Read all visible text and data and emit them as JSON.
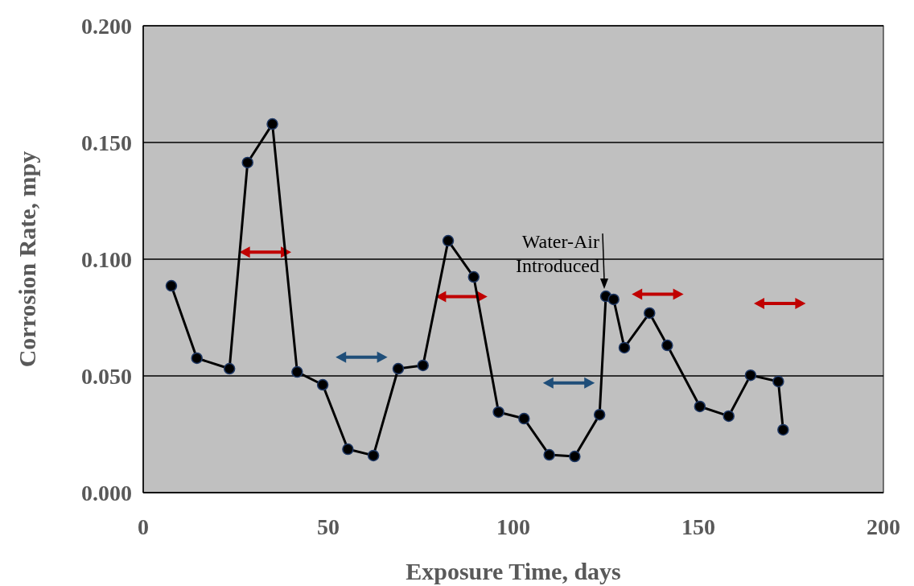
{
  "chart_data": {
    "type": "line",
    "xlabel": "Exposure Time, days",
    "ylabel": "Corrosion Rate, mpy",
    "x": [
      7.6,
      14.5,
      23.3,
      28.2,
      34.9,
      41.6,
      48.5,
      55.3,
      62.2,
      68.9,
      75.6,
      82.4,
      89.3,
      96.0,
      102.9,
      109.7,
      116.6,
      123.3,
      125.0,
      127.1,
      130.0,
      136.8,
      141.6,
      150.4,
      158.2,
      164.1,
      171.6,
      172.9
    ],
    "series": [
      {
        "color": "#000000",
        "values": [
          0.0886,
          0.0576,
          0.0531,
          0.1414,
          0.1579,
          0.0517,
          0.0462,
          0.0186,
          0.0159,
          0.0531,
          0.0545,
          0.1079,
          0.0924,
          0.0345,
          0.0317,
          0.0162,
          0.0155,
          0.0334,
          0.0841,
          0.0828,
          0.0621,
          0.0769,
          0.0631,
          0.0369,
          0.0328,
          0.0503,
          0.0476,
          0.0269
        ]
      }
    ],
    "xlim": [
      0,
      200
    ],
    "xticks": [
      0,
      50,
      100,
      150,
      200
    ],
    "ylim": [
      0,
      0.2
    ],
    "yticks": [
      {
        "value": 0,
        "label": "0.000"
      },
      {
        "value": 0.05,
        "label": "0.050"
      },
      {
        "value": 0.1,
        "label": "0.100"
      },
      {
        "value": 0.15,
        "label": "0.150"
      },
      {
        "value": 0.2,
        "label": "0.200"
      }
    ],
    "grid": "y",
    "marker": "circle",
    "line_style": "solid",
    "annotations": [
      {
        "text": "Water-Air Introduced",
        "x": 125.0,
        "y": 0.0841
      }
    ]
  }
}
